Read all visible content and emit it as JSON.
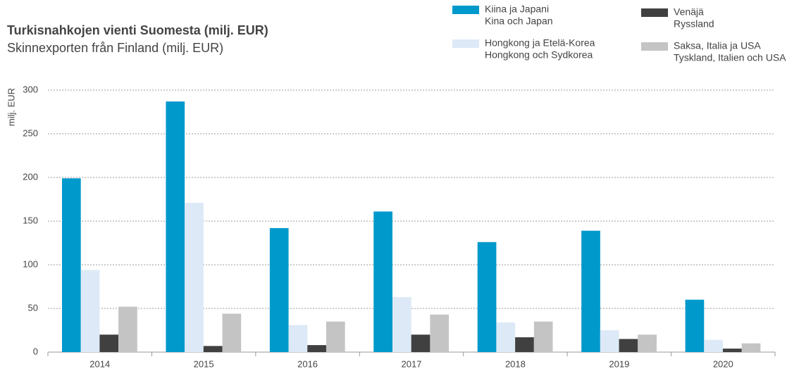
{
  "chart_data": {
    "type": "bar",
    "title": "Turkisnahkojen vienti Suomesta (milj. EUR)",
    "subtitle": "Skinnexporten från Finland (milj. EUR)",
    "y_label": "milj. EUR",
    "categories": [
      "2014",
      "2015",
      "2016",
      "2017",
      "2018",
      "2019",
      "2020"
    ],
    "series": [
      {
        "name": "Kiina ja Japani",
        "name_sv": "Kina och Japan",
        "color": "#0099cc",
        "values": [
          199,
          287,
          142,
          161,
          126,
          139,
          60
        ]
      },
      {
        "name": "Hongkong ja Etelä-Korea",
        "name_sv": "Hongkong och Sydkorea",
        "color": "#dde9f7",
        "values": [
          94,
          171,
          31,
          63,
          34,
          25,
          14
        ]
      },
      {
        "name": "Venäjä",
        "name_sv": "Ryssland",
        "color": "#404040",
        "values": [
          20,
          7,
          8,
          20,
          17,
          15,
          4
        ]
      },
      {
        "name": "Saksa, Italia ja USA",
        "name_sv": "Tyskland, Italien och USA",
        "color": "#c4c4c4",
        "values": [
          52,
          44,
          35,
          43,
          35,
          20,
          10
        ]
      }
    ],
    "ylim": [
      0,
      300
    ],
    "yticks": [
      0,
      50,
      100,
      150,
      200,
      250,
      300
    ],
    "grid": true
  }
}
